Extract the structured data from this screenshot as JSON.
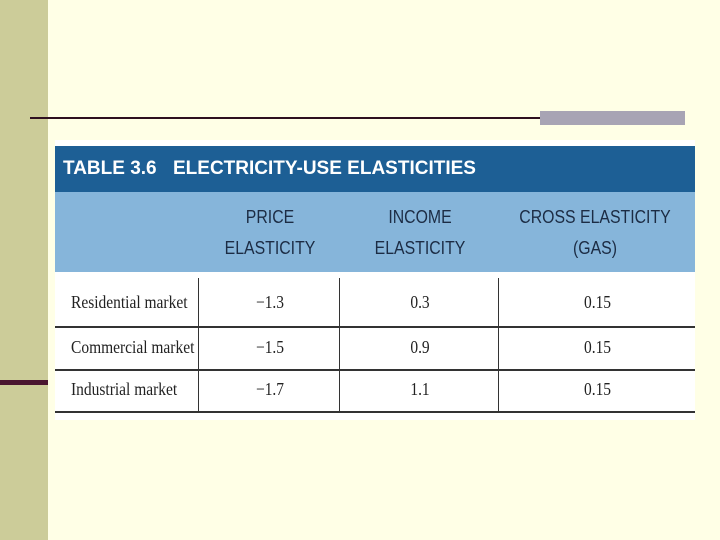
{
  "table": {
    "number": "TABLE 3.6",
    "title": "ELECTRICITY-USE ELASTICITIES",
    "columns": [
      {
        "line1": "PRICE",
        "line2": "ELASTICITY"
      },
      {
        "line1": "INCOME",
        "line2": "ELASTICITY"
      },
      {
        "line1": "CROSS ELASTICITY",
        "line2": "(GAS)"
      }
    ],
    "rows": [
      {
        "label": "Residential market",
        "price": "−1.3",
        "income": "0.3",
        "cross": "0.15"
      },
      {
        "label": "Commercial market",
        "price": "−1.5",
        "income": "0.9",
        "cross": "0.15"
      },
      {
        "label": "Industrial market",
        "price": "−1.7",
        "income": "1.1",
        "cross": "0.15"
      }
    ]
  },
  "colors": {
    "background": "#ffffe6",
    "side_band": "#cccc99",
    "title_bar": "#1d5f95",
    "header_band": "#86b5da"
  }
}
